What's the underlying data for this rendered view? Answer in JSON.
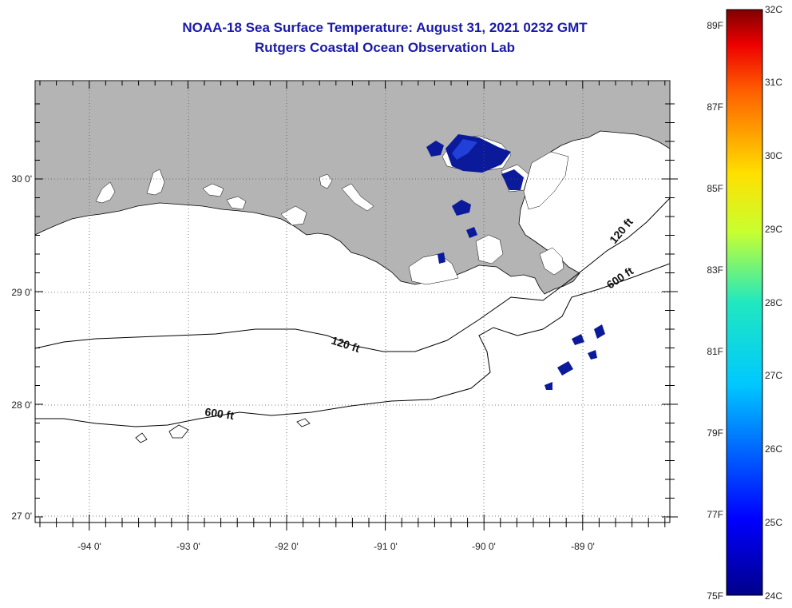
{
  "title": "NOAA-18 Sea Surface Temperature:  August 31, 2021 0232 GMT",
  "subtitle": "Rutgers Coastal Ocean Observation Lab",
  "colors": {
    "land": "#b4b4b4",
    "ocean": "#ffffff",
    "cold_patch": "#0a1a9a",
    "title_text": "#1a1aa8"
  },
  "map": {
    "lon_labels": [
      "-94 0'",
      "-93 0'",
      "-92 0'",
      "-91 0'",
      "-90 0'",
      "-89 0'"
    ],
    "lat_labels": [
      "30 0'",
      "29 0'",
      "28 0'",
      "27 0'"
    ],
    "contours": [
      "120 ft",
      "120 ft",
      "600 ft",
      "600 ft"
    ]
  },
  "colorbar": {
    "celsius_labels": [
      "32C",
      "31C",
      "30C",
      "29C",
      "28C",
      "27C",
      "26C",
      "25C",
      "24C"
    ],
    "fahrenheit_labels": [
      "89F",
      "87F",
      "85F",
      "83F",
      "81F",
      "79F",
      "77F",
      "75F"
    ]
  }
}
